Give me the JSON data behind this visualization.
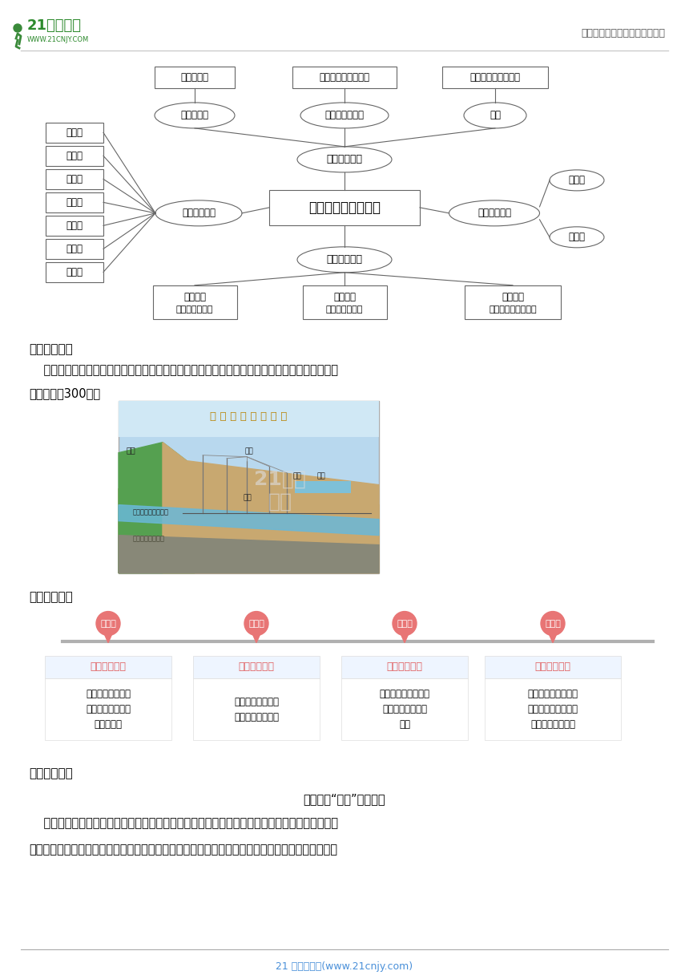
{
  "page_bg": "#ffffff",
  "header_text_right": "中小学教育资源及组卷应用平台",
  "header_text_right_color": "#555555",
  "header_line_color": "#cccccc",
  "mindmap_center": "说明事物要抓住特征",
  "top_boxes": [
    "生物学特征",
    "使用方法或实用功能",
    "外部形态与内部构造"
  ],
  "mid_ellipses_top": [
    "植物、动物",
    "生活、学习用品",
    "建筑"
  ],
  "center_ellipse_top": "确定说明对象",
  "center_ellipse_bottom": "安排说明顺序",
  "left_ellipse": "使用说明方法",
  "right_ellipse": "锤炼说明语言",
  "right_small_top": "准确性",
  "right_small_bottom": "严密性",
  "left_boxes": [
    "下定义",
    "列数字",
    "作比较",
    "打比方",
    "引资料",
    "分类别",
    "作诠释"
  ],
  "bottom_boxes": [
    [
      "时间顺序",
      "（事物的演变）"
    ],
    [
      "空间顺序",
      "（具体建筑物）"
    ],
    [
      "逻辑顺序",
      "（某类事物的共性）"
    ]
  ],
  "section1_title": "【文题展示】",
  "section1_text1": "    【一】利用下面的材料（材料见教材），抓住坎儿井的一两个特征，整理出一篇说明文。题目自",
  "section1_text2": "拟，不少于300字。",
  "section2_title": "【思维导图】",
  "angle_labels": [
    "角度一",
    "角度二",
    "角度三",
    "角度四"
  ],
  "item_titles": [
    "坎儿井的来历",
    "坎儿井的开凿",
    "坎儿井的设计",
    "坎儿井的效益"
  ],
  "item_bodies": [
    "按照时间顺序，介\n绍坎儿井的起源、\n使用和未来",
    "介绍坎儿井是如何\n开凿、如何使用的",
    "抓住坎儿井的设计，\n突出其科学的设计\n方法",
    "重点说明坎儿井如何\n实现灌溉目的，突出\n其效益巨大的特征"
  ],
  "marker_color": "#e87575",
  "title_color": "#e06060",
  "section3_title": "【片段展示】",
  "section3_subtitle": "沙漠中的“血脉”（片段）",
  "section3_line1": "    吐鲁番气候极为干旱，然而让人想不到的是，这里很久以前就出现了大片绿洲。原来，吐鲁番盆",
  "section3_line2": "地分布着四通八达、犹如人体血脉般的坎儿井群和潜流网络。坎儿井主要分布在新疆东部的吐鲁番盆",
  "footer_text": "21 世纪教育网(www.21cnjy.com)",
  "footer_color": "#4a90d9"
}
